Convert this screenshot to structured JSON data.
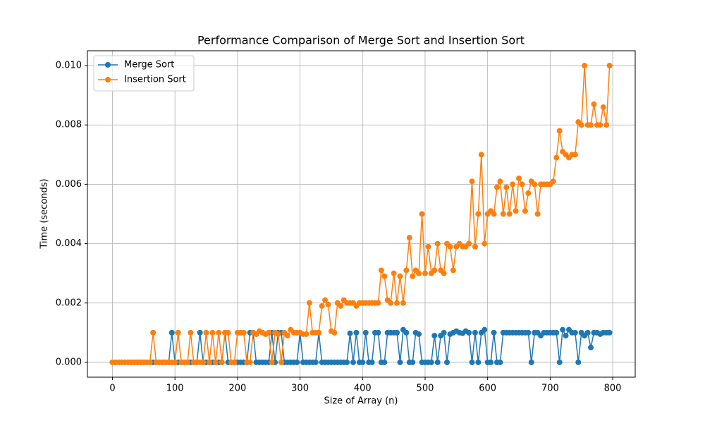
{
  "chart_data": {
    "type": "line",
    "title": "Performance Comparison of Merge Sort and Insertion Sort",
    "x_label": "Size of Array (n)",
    "y_label": "Time (seconds)",
    "x": [
      0,
      5,
      10,
      15,
      20,
      25,
      30,
      35,
      40,
      45,
      50,
      55,
      60,
      65,
      70,
      75,
      80,
      85,
      90,
      95,
      100,
      105,
      110,
      115,
      120,
      125,
      130,
      135,
      140,
      145,
      150,
      155,
      160,
      165,
      170,
      175,
      180,
      185,
      190,
      195,
      200,
      205,
      210,
      215,
      220,
      225,
      230,
      235,
      240,
      245,
      250,
      255,
      260,
      265,
      270,
      275,
      280,
      285,
      290,
      295,
      300,
      305,
      310,
      315,
      320,
      325,
      330,
      335,
      340,
      345,
      350,
      355,
      360,
      365,
      370,
      375,
      380,
      385,
      390,
      395,
      400,
      405,
      410,
      415,
      420,
      425,
      430,
      435,
      440,
      445,
      450,
      455,
      460,
      465,
      470,
      475,
      480,
      485,
      490,
      495,
      500,
      505,
      510,
      515,
      520,
      525,
      530,
      535,
      540,
      545,
      550,
      555,
      560,
      565,
      570,
      575,
      580,
      585,
      590,
      595,
      600,
      605,
      610,
      615,
      620,
      625,
      630,
      635,
      640,
      645,
      650,
      655,
      660,
      665,
      670,
      675,
      680,
      685,
      690,
      695,
      700,
      705,
      710,
      715,
      720,
      725,
      730,
      735,
      740,
      745,
      750,
      755,
      760,
      765,
      770,
      775,
      780,
      785,
      790,
      795
    ],
    "series": [
      {
        "name": "Merge Sort",
        "color": "#1f77b4",
        "values": [
          0,
          0,
          0,
          0,
          0,
          0,
          0,
          0,
          0,
          0,
          0,
          0,
          0,
          0,
          0,
          0,
          0,
          0,
          0,
          0.001,
          0,
          0,
          0,
          0,
          0,
          0,
          0,
          0,
          0.001,
          0,
          0,
          0,
          0,
          0,
          0,
          0,
          0.001,
          0,
          0,
          0,
          0,
          0,
          0,
          0,
          0.001,
          0.001,
          0,
          0,
          0,
          0,
          0,
          0.001,
          0,
          0.001,
          0.001,
          0,
          0,
          0,
          0,
          0,
          0.001,
          0,
          0,
          0,
          0,
          0,
          0.001,
          0,
          0,
          0,
          0,
          0,
          0,
          0,
          0,
          0,
          0.00098,
          0,
          0.001,
          0,
          0,
          0.001,
          0,
          0,
          0.001,
          0.001,
          0,
          0,
          0.001,
          0.001,
          0.001,
          0.001,
          0,
          0.0011,
          0.001,
          0,
          0,
          0.001,
          0.00095,
          0,
          0,
          0,
          0,
          0.0009,
          0,
          0.0009,
          0.001,
          0,
          0.00095,
          0.001,
          0.00105,
          0.001,
          0.00098,
          0.00105,
          0.001,
          0,
          0.001,
          0,
          0.001,
          0.0011,
          0,
          0,
          0.001,
          0,
          0,
          0.001,
          0.001,
          0.001,
          0.001,
          0.001,
          0.001,
          0.001,
          0.001,
          0.001,
          0,
          0.001,
          0.001,
          0.0009,
          0.001,
          0.001,
          0.001,
          0.001,
          0.001,
          0,
          0.0011,
          0.0009,
          0.0011,
          0.001,
          0.001,
          0,
          0.001,
          0.0009,
          0.001,
          0.0005,
          0.001,
          0.001,
          0.00095,
          0.001,
          0.001,
          0.001
        ]
      },
      {
        "name": "Insertion Sort",
        "color": "#ff7f0e",
        "values": [
          0,
          0,
          0,
          0,
          0,
          0,
          0,
          0,
          0,
          0,
          0,
          0,
          0,
          0.001,
          0,
          0,
          0,
          0,
          0,
          0,
          0,
          0.001,
          0,
          0,
          0,
          0.001,
          0,
          0,
          0,
          0,
          0.001,
          0,
          0.001,
          0,
          0.001,
          0,
          0.001,
          0.001,
          0,
          0,
          0.001,
          0.001,
          0.001,
          0,
          0,
          0.001,
          0.00095,
          0.00105,
          0.001,
          0.00095,
          0.001,
          0,
          0.001,
          0.00095,
          0,
          0.001,
          0.0009,
          0.0011,
          0.001,
          0.001,
          0.001,
          0.00095,
          0.00095,
          0.002,
          0.001,
          0.001,
          0.001,
          0.0019,
          0.0021,
          0.00195,
          0.00105,
          0.001,
          0.002,
          0.0019,
          0.0021,
          0.002,
          0.002,
          0.002,
          0.0019,
          0.002,
          0.002,
          0.002,
          0.002,
          0.002,
          0.002,
          0.002,
          0.0031,
          0.0029,
          0.0021,
          0.002,
          0.003,
          0.002,
          0.0029,
          0.002,
          0.0031,
          0.0042,
          0.0029,
          0.0031,
          0.003,
          0.005,
          0.003,
          0.0039,
          0.003,
          0.0031,
          0.004,
          0.0031,
          0.003,
          0.004,
          0.0039,
          0.0031,
          0.0039,
          0.004,
          0.0039,
          0.0039,
          0.004,
          0.0061,
          0.0039,
          0.005,
          0.007,
          0.004,
          0.005,
          0.0051,
          0.005,
          0.0059,
          0.0061,
          0.005,
          0.0059,
          0.005,
          0.006,
          0.0051,
          0.0062,
          0.006,
          0.0051,
          0.0057,
          0.0061,
          0.006,
          0.005,
          0.006,
          0.006,
          0.006,
          0.006,
          0.0061,
          0.0069,
          0.0078,
          0.0071,
          0.007,
          0.0069,
          0.007,
          0.007,
          0.0081,
          0.008,
          0.01,
          0.008,
          0.008,
          0.0087,
          0.008,
          0.008,
          0.0086,
          0.008,
          0.01
        ]
      }
    ],
    "xlim": [
      -40,
      836
    ],
    "ylim": [
      -0.0005,
      0.0105
    ],
    "xticks": [
      0,
      100,
      200,
      300,
      400,
      500,
      600,
      700,
      800
    ],
    "yticks": [
      {
        "value": 0,
        "label": "0.000"
      },
      {
        "value": 0.002,
        "label": "0.002"
      },
      {
        "value": 0.004,
        "label": "0.004"
      },
      {
        "value": 0.006,
        "label": "0.006"
      },
      {
        "value": 0.008,
        "label": "0.008"
      },
      {
        "value": 0.01,
        "label": "0.010"
      }
    ],
    "grid": true,
    "legend": "upper-left"
  }
}
